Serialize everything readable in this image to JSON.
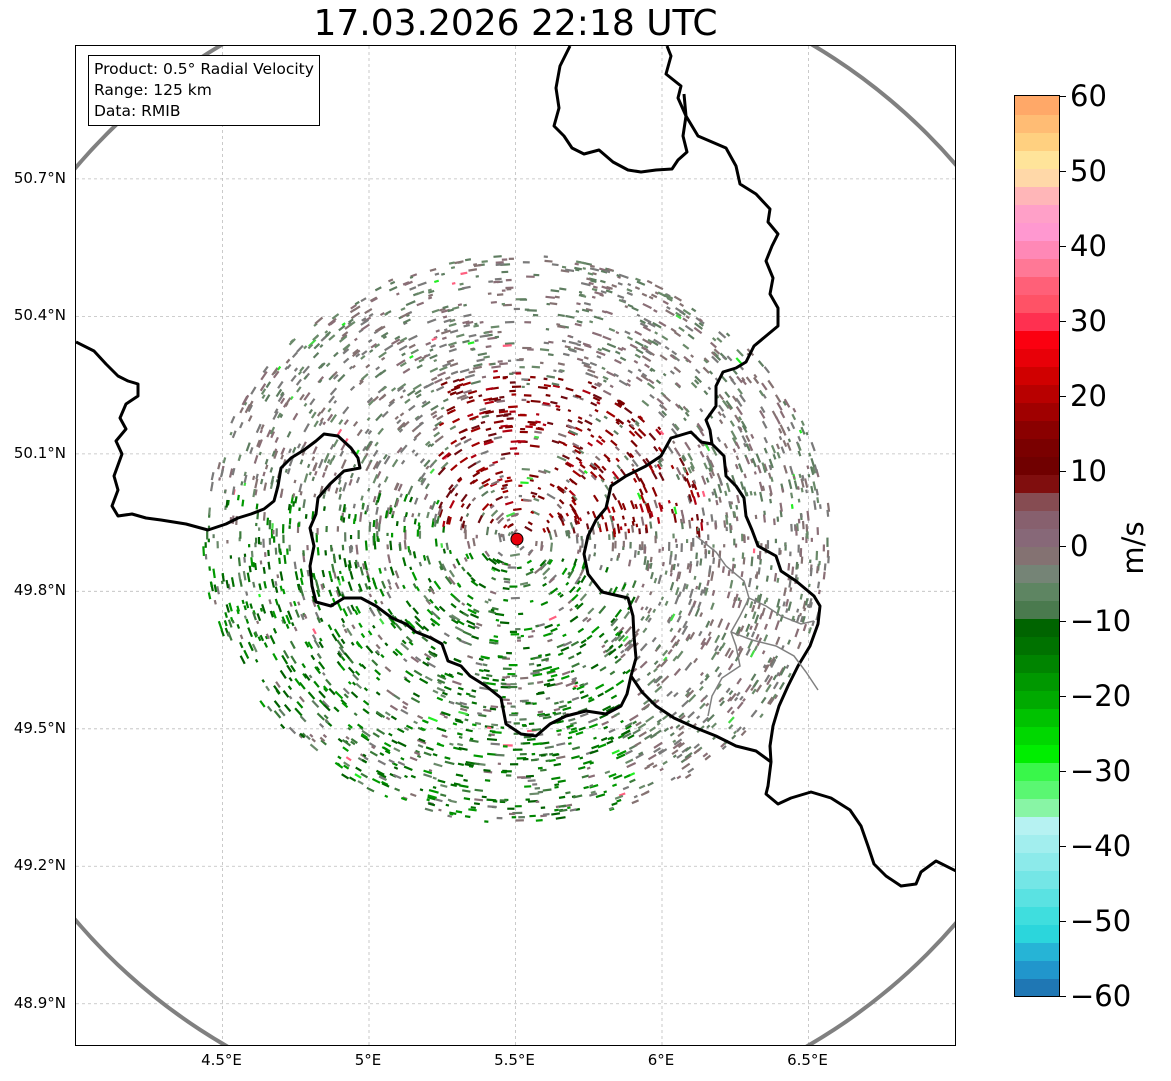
{
  "title": "17.03.2026 22:18 UTC",
  "info": {
    "product": "Product: 0.5° Radial Velocity",
    "range": "Range: 125 km",
    "source": "Data: RMIB"
  },
  "axes": {
    "lat_labels": [
      "50.7°N",
      "50.4°N",
      "50.1°N",
      "49.8°N",
      "49.5°N",
      "49.2°N",
      "48.9°N"
    ],
    "lat_values": [
      50.7,
      50.4,
      50.1,
      49.8,
      49.5,
      49.2,
      48.9
    ],
    "lon_labels": [
      "4.5°E",
      "5°E",
      "5.5°E",
      "6°E",
      "6.5°E"
    ],
    "lon_values": [
      4.5,
      5.0,
      5.5,
      6.0,
      6.5
    ],
    "lat_range": [
      48.81,
      50.99
    ],
    "lon_range": [
      4.0,
      7.0
    ]
  },
  "radar": {
    "site_lon": 5.505,
    "site_lat": 49.914,
    "range_km": 125,
    "site_color": "#e8000b"
  },
  "colorbar": {
    "unit": "m/s",
    "min": -60,
    "max": 60,
    "ticks": [
      "60",
      "50",
      "40",
      "30",
      "20",
      "10",
      "0",
      "−10",
      "−20",
      "−30",
      "−40",
      "−50",
      "−60"
    ],
    "tick_values": [
      60,
      50,
      40,
      30,
      20,
      10,
      0,
      -10,
      -20,
      -30,
      -40,
      -50,
      -60
    ],
    "colors": [
      "#1f77b4",
      "#2196cc",
      "#26b4d6",
      "#2bd6dc",
      "#3fdede",
      "#5ae2e2",
      "#74e6e6",
      "#8ceaea",
      "#a2eeee",
      "#b6f2f2",
      "#88f5a5",
      "#5af772",
      "#39f74a",
      "#00ee00",
      "#00d800",
      "#00c200",
      "#00aa00",
      "#009800",
      "#008400",
      "#007200",
      "#006400",
      "#4a7a4e",
      "#5e8562",
      "#758476",
      "#847272",
      "#876878",
      "#87606e",
      "#864c52",
      "#800e0e",
      "#700000",
      "#7a0000",
      "#8a0000",
      "#a00000",
      "#b80000",
      "#d00000",
      "#e80008",
      "#fb0010",
      "#ff3050",
      "#ff5266",
      "#ff6078",
      "#ff7896",
      "#ff88b6",
      "#ff98d0",
      "#ffa0c8",
      "#ffb6b8",
      "#ffd8a8",
      "#ffe49a",
      "#ffd080",
      "#ffbc74",
      "#ffa868"
    ]
  }
}
